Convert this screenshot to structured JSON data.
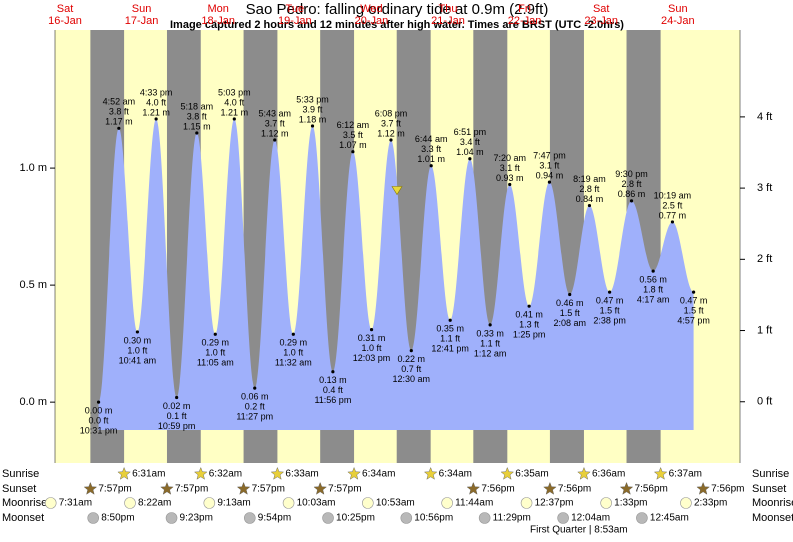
{
  "chart_data": {
    "type": "tide",
    "title": "Sao Pedro: falling  ordinary tide at 0.9m (2.9ft)",
    "subtitle": "Image captured 2 hours and 12 minutes after high water. Times are BRST (UTC -2.0hrs)",
    "current_level": 0.9,
    "days": [
      {
        "weekday": "Sat",
        "date": "16-Jan"
      },
      {
        "weekday": "Sun",
        "date": "17-Jan"
      },
      {
        "weekday": "Mon",
        "date": "18-Jan"
      },
      {
        "weekday": "Tue",
        "date": "19-Jan"
      },
      {
        "weekday": "Wed",
        "date": "20-Jan"
      },
      {
        "weekday": "Thu",
        "date": "21-Jan"
      },
      {
        "weekday": "Fri",
        "date": "22-Jan"
      },
      {
        "weekday": "Sat",
        "date": "23-Jan"
      },
      {
        "weekday": "Sun",
        "date": "24-Jan"
      }
    ],
    "ylim": [
      -0.26,
      1.59
    ],
    "yticks": [
      {
        "value": 0,
        "label": "0.0 m"
      },
      {
        "value": 0.5,
        "label": "0.5 m"
      },
      {
        "value": 1,
        "label": "1.0 m"
      }
    ],
    "y2lim": [
      -0.86,
      5.22
    ],
    "y2ticks": [
      {
        "value": 0,
        "label": "0 ft"
      },
      {
        "value": 1,
        "label": "1 ft"
      },
      {
        "value": 2,
        "label": "2 ft"
      },
      {
        "value": 3,
        "label": "3 ft"
      },
      {
        "value": 4,
        "label": "4 ft"
      }
    ],
    "color": "#9fb0fb",
    "tides": {
      "times": [
        "10:31 pm",
        "4:52 am",
        "10:41 am",
        "4:33 pm",
        "10:59 pm",
        "5:18 am",
        "11:05 am",
        "5:03 pm",
        "11:27 pm",
        "5:43 am",
        "11:32 am",
        "5:33 pm",
        "11:56 pm",
        "6:12 am",
        "12:03 pm",
        "6:08 pm",
        "12:30 am",
        "6:44 am",
        "12:41 pm",
        "6:51 pm",
        "1:12 am",
        "7:20 am",
        "1:25 pm",
        "7:47 pm",
        "2:08 am",
        "8:19 am",
        "2:38 pm",
        "9:30 pm",
        "4:17 am",
        "10:19 am",
        "4:57 pm"
      ],
      "values": [
        0.0,
        1.17,
        0.3,
        1.21,
        0.02,
        1.15,
        0.29,
        1.21,
        0.06,
        1.12,
        0.29,
        1.18,
        0.13,
        1.07,
        0.31,
        1.12,
        0.22,
        1.01,
        0.35,
        1.04,
        0.33,
        0.93,
        0.41,
        0.94,
        0.46,
        0.84,
        0.47,
        0.86,
        0.56,
        0.77,
        0.47
      ],
      "value_labels": [
        "0.00 m",
        "1.17 m",
        "0.30 m",
        "1.21 m",
        "0.02 m",
        "1.15 m",
        "0.29 m",
        "1.21 m",
        "0.06 m",
        "1.12 m",
        "0.29 m",
        "1.18 m",
        "0.13 m",
        "1.07 m",
        "0.31 m",
        "1.12 m",
        "0.22 m",
        "1.01 m",
        "0.35 m",
        "1.04 m",
        "0.33 m",
        "0.93 m",
        "0.41 m",
        "0.94 m",
        "0.46 m",
        "0.84 m",
        "0.47 m",
        "0.86 m",
        "0.56 m",
        "0.77 m",
        "0.47 m"
      ],
      "feet_labels": [
        "0.0 ft",
        "3.8 ft",
        "1.0 ft",
        "4.0 ft",
        "0.1 ft",
        "3.8 ft",
        "1.0 ft",
        "4.0 ft",
        "0.2 ft",
        "3.7 ft",
        "1.0 ft",
        "3.9 ft",
        "0.4 ft",
        "3.5 ft",
        "1.0 ft",
        "3.7 ft",
        "0.7 ft",
        "3.3 ft",
        "1.1 ft",
        "3.4 ft",
        "1.1 ft",
        "3.1 ft",
        "1.3 ft",
        "3.1 ft",
        "1.5 ft",
        "2.8 ft",
        "1.5 ft",
        "2.8 ft",
        "1.8 ft",
        "2.5 ft",
        "1.5 ft"
      ]
    },
    "almanac": {
      "rows": [
        "Sunrise",
        "Sunset",
        "Moonrise",
        "Moonset"
      ],
      "sunrise": [
        "6:31am",
        "6:32am",
        "6:33am",
        "6:34am",
        "6:34am",
        "6:35am",
        "6:36am",
        "6:37am"
      ],
      "sunset": [
        "7:57pm",
        "7:57pm",
        "7:57pm",
        "7:57pm",
        "7:56pm",
        "7:56pm",
        "7:56pm",
        "7:56pm"
      ],
      "moonrise": [
        "7:31am",
        "8:22am",
        "9:13am",
        "10:03am",
        "10:53am",
        "11:44am",
        "12:37pm",
        "1:33pm",
        "2:33pm"
      ],
      "moonset": [
        "8:50pm",
        "9:23pm",
        "9:54pm",
        "10:25pm",
        "10:56pm",
        "11:29pm",
        "12:04am",
        "12:45am"
      ],
      "moon_phase": "First Quarter | 8:53am"
    }
  }
}
